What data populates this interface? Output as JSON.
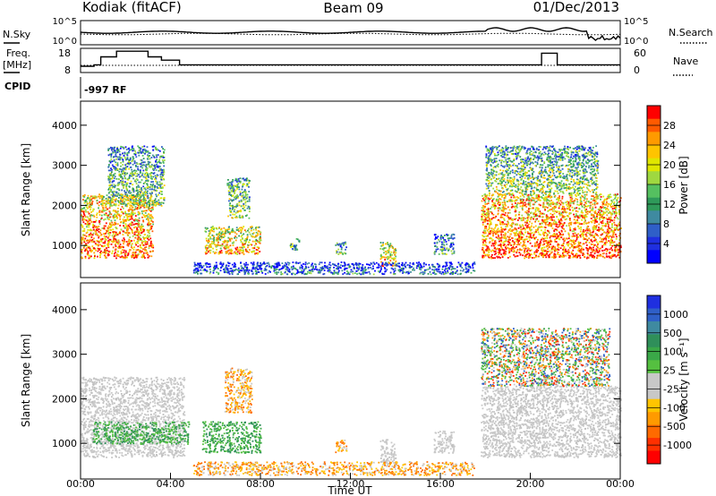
{
  "header": {
    "station": "Kodiak (fitACF)",
    "beam": "Beam 09",
    "date": "01/Dec/2013"
  },
  "chart_data": [
    {
      "type": "line",
      "panel": "noise",
      "left_label": "N.Sky",
      "right_label": "N.Search",
      "left_ticks": [
        "10^5",
        "10^0"
      ],
      "right_ticks": [
        "10^5",
        "10^0"
      ],
      "series": [
        {
          "name": "N.Sky",
          "style": "solid"
        },
        {
          "name": "N.Search",
          "style": "dotted"
        }
      ]
    },
    {
      "type": "line",
      "panel": "frequency",
      "left_label": "Freq.",
      "left_unit": "[MHz]",
      "right_label": "Nave",
      "left_ticks": [
        "18",
        "8"
      ],
      "right_ticks": [
        "60",
        "0"
      ],
      "freq_steps": [
        {
          "t": 0.0,
          "v": 10.6
        },
        {
          "t": 0.6,
          "v": 11.2
        },
        {
          "t": 0.9,
          "v": 14.5
        },
        {
          "t": 1.6,
          "v": 16.8
        },
        {
          "t": 3.0,
          "v": 14.5
        },
        {
          "t": 3.6,
          "v": 13.1
        },
        {
          "t": 4.4,
          "v": 11.2
        },
        {
          "t": 20.5,
          "v": 16.0
        },
        {
          "t": 21.2,
          "v": 11.2
        },
        {
          "t": 24.0,
          "v": 11.2
        }
      ],
      "series": [
        {
          "name": "Freq.",
          "style": "solid"
        },
        {
          "name": "Nave",
          "style": "dotted"
        }
      ]
    },
    {
      "type": "table",
      "panel": "cpid",
      "label": "CPID",
      "value": "-997 RF"
    },
    {
      "type": "heatmap",
      "panel": "power",
      "ylabel": "Slant Range [km]",
      "yticks": [
        1000,
        2000,
        3000,
        4000
      ],
      "ylim": [
        200,
        4600
      ],
      "xlim": [
        0,
        24
      ],
      "colorbar": {
        "label": "Power [dB]",
        "ticks": [
          "28",
          "24",
          "20",
          "16",
          "12",
          "8",
          "4"
        ],
        "colors": [
          "#ff0000",
          "#ff5a00",
          "#ff9a00",
          "#ffc400",
          "#dfe600",
          "#9fd840",
          "#55c060",
          "#2f9a5a",
          "#3f8aa0",
          "#2f5fc8",
          "#1f2fe0",
          "#0000ff"
        ]
      },
      "blobs": [
        {
          "t0": 0.0,
          "t1": 3.2,
          "r0": 700,
          "r1": 2300,
          "level": 0.85
        },
        {
          "t0": 1.2,
          "t1": 3.7,
          "r0": 2000,
          "r1": 3500,
          "level": 0.45
        },
        {
          "t0": 5.5,
          "t1": 8.0,
          "r0": 800,
          "r1": 1500,
          "level": 0.75
        },
        {
          "t0": 6.5,
          "t1": 7.5,
          "r0": 1700,
          "r1": 2700,
          "level": 0.5
        },
        {
          "t0": 9.3,
          "t1": 9.7,
          "r0": 900,
          "r1": 1200,
          "level": 0.4
        },
        {
          "t0": 11.3,
          "t1": 11.8,
          "r0": 800,
          "r1": 1100,
          "level": 0.45
        },
        {
          "t0": 13.3,
          "t1": 14.0,
          "r0": 500,
          "r1": 1100,
          "level": 0.7
        },
        {
          "t0": 15.7,
          "t1": 16.6,
          "r0": 800,
          "r1": 1300,
          "level": 0.35
        },
        {
          "t0": 5.0,
          "t1": 17.5,
          "r0": 300,
          "r1": 600,
          "level": 0.2
        },
        {
          "t0": 17.8,
          "t1": 24.0,
          "r0": 700,
          "r1": 2300,
          "level": 0.9
        },
        {
          "t0": 18.0,
          "t1": 23.0,
          "r0": 2300,
          "r1": 3500,
          "level": 0.5
        }
      ]
    },
    {
      "type": "heatmap",
      "panel": "velocity",
      "ylabel": "Slant Range [km]",
      "xlabel": "Time UT",
      "yticks": [
        1000,
        2000,
        3000,
        4000
      ],
      "ylim": [
        200,
        4600
      ],
      "xlim": [
        0,
        24
      ],
      "xticks": [
        "00:00",
        "04:00",
        "08:00",
        "12:00",
        "16:00",
        "20:00",
        "00:00"
      ],
      "colorbar": {
        "label": "Velocity [m s⁻¹]",
        "ticks": [
          "1000",
          "500",
          "100",
          "25",
          "-25",
          "-100",
          "-500",
          "-1000"
        ],
        "colors": [
          "#1f2fe0",
          "#2f5fc8",
          "#3f8aa0",
          "#2f8f5a",
          "#3aa848",
          "#55c040",
          "#c8c8c8",
          "#c8c8c8",
          "#ffc400",
          "#ff9a00",
          "#ff6a00",
          "#ff3000",
          "#ff0000"
        ]
      },
      "blobs": [
        {
          "t0": 0.0,
          "t1": 4.6,
          "r0": 700,
          "r1": 2500,
          "cls": "grey"
        },
        {
          "t0": 0.5,
          "t1": 4.8,
          "r0": 1000,
          "r1": 1500,
          "cls": "green"
        },
        {
          "t0": 5.4,
          "t1": 8.0,
          "r0": 800,
          "r1": 1500,
          "cls": "green"
        },
        {
          "t0": 6.4,
          "t1": 7.6,
          "r0": 1700,
          "r1": 2700,
          "cls": "orange"
        },
        {
          "t0": 11.3,
          "t1": 11.8,
          "r0": 800,
          "r1": 1100,
          "cls": "orange"
        },
        {
          "t0": 13.3,
          "t1": 14.0,
          "r0": 500,
          "r1": 1100,
          "cls": "grey"
        },
        {
          "t0": 15.7,
          "t1": 16.6,
          "r0": 800,
          "r1": 1300,
          "cls": "grey"
        },
        {
          "t0": 5.0,
          "t1": 17.5,
          "r0": 300,
          "r1": 600,
          "cls": "orange"
        },
        {
          "t0": 17.8,
          "t1": 24.0,
          "r0": 700,
          "r1": 2300,
          "cls": "grey"
        },
        {
          "t0": 17.8,
          "t1": 23.5,
          "r0": 2300,
          "r1": 3600,
          "cls": "mixed"
        }
      ]
    }
  ]
}
